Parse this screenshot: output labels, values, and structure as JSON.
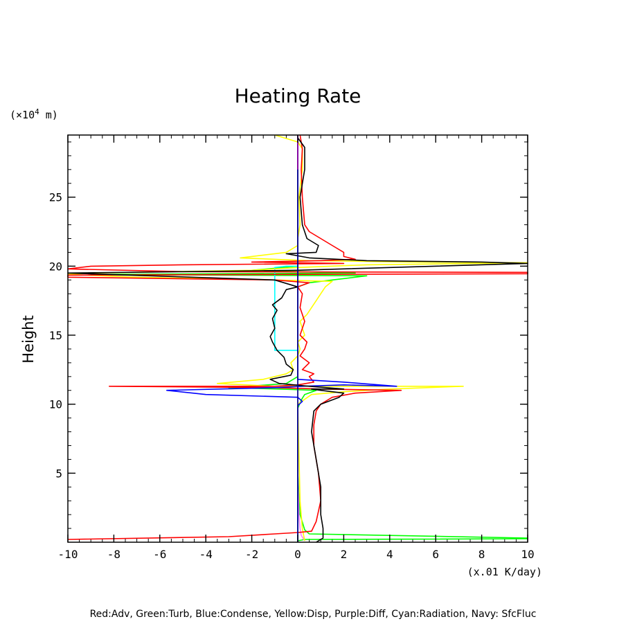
{
  "chart_data": {
    "type": "line",
    "title": "Heating Rate",
    "ylabel": "Height",
    "yunit_prefix": "(×10",
    "yunit_exp": "4",
    "yunit_suffix": " m)",
    "xunit": "(x.01 K/day)",
    "xlim": [
      -10,
      10
    ],
    "ylim": [
      0,
      29.5
    ],
    "xticks": [
      -10,
      -8,
      -6,
      -4,
      -2,
      0,
      2,
      4,
      6,
      8,
      10
    ],
    "xtick_labels": [
      "-10",
      "-8",
      "-6",
      "-4",
      "-2",
      "0",
      "2",
      "4",
      "6",
      "8",
      "10"
    ],
    "yticks": [
      5,
      10,
      15,
      20,
      25
    ],
    "ytick_labels": [
      "5",
      "10",
      "15",
      "20",
      "25"
    ],
    "legend_text": "Red:Adv, Green:Turb, Blue:Condense, Yellow:Disp, Purple:Diff, Cyan:Radiation, Navy: SfcFluc",
    "series": [
      {
        "name": "Turb",
        "color": "#00ff00",
        "points": [
          [
            0,
            0.1
          ],
          [
            0.3,
            0.2
          ],
          [
            10,
            0.25
          ],
          [
            10,
            0.3
          ],
          [
            0.5,
            0.6
          ],
          [
            0.3,
            0.9
          ],
          [
            0.1,
            2
          ],
          [
            0,
            5
          ],
          [
            0,
            9.7
          ],
          [
            0.15,
            10.3
          ],
          [
            0.3,
            10.7
          ],
          [
            0.8,
            11
          ],
          [
            -0.8,
            11.1
          ],
          [
            -3,
            11.2
          ],
          [
            -0.5,
            11.5
          ],
          [
            0,
            12
          ],
          [
            0,
            14
          ],
          [
            0,
            18.5
          ],
          [
            0.5,
            18.8
          ],
          [
            1.5,
            19
          ],
          [
            3,
            19.3
          ],
          [
            -9,
            19.4
          ],
          [
            2.5,
            19.5
          ],
          [
            0,
            19.6
          ],
          [
            -2,
            19.7
          ],
          [
            0,
            20
          ],
          [
            0,
            29.5
          ]
        ]
      },
      {
        "name": "Cyan:Radiation",
        "color": "#00ffff",
        "points": [
          [
            0,
            0
          ],
          [
            0,
            13.8
          ],
          [
            0,
            13.9
          ],
          [
            -1,
            13.9
          ],
          [
            -1,
            14.5
          ],
          [
            -1,
            16
          ],
          [
            -1,
            17.5
          ],
          [
            -1,
            19
          ],
          [
            -1,
            19.9
          ],
          [
            -0.5,
            20
          ],
          [
            0,
            20
          ],
          [
            0,
            29.5
          ]
        ]
      },
      {
        "name": "Purple:Diff",
        "color": "#ff80ff",
        "points": [
          [
            0.3,
            0.1
          ],
          [
            0.15,
            0.5
          ],
          [
            0.1,
            1
          ],
          [
            0.05,
            2
          ],
          [
            0,
            5
          ],
          [
            0,
            10
          ],
          [
            0,
            29.5
          ]
        ]
      },
      {
        "name": "Disp",
        "color": "#ffff00",
        "points": [
          [
            0.3,
            0.1
          ],
          [
            0.2,
            1
          ],
          [
            0.1,
            3
          ],
          [
            0,
            10
          ],
          [
            0.6,
            10.7
          ],
          [
            2,
            10.9
          ],
          [
            4,
            11.1
          ],
          [
            7.2,
            11.3
          ],
          [
            1.5,
            11.3
          ],
          [
            -1,
            11.3
          ],
          [
            -3.5,
            11.5
          ],
          [
            -1.5,
            11.8
          ],
          [
            -0.5,
            12.2
          ],
          [
            -0.2,
            12.5
          ],
          [
            -0.3,
            13
          ],
          [
            0,
            13.5
          ],
          [
            0.1,
            14
          ],
          [
            0,
            14.5
          ],
          [
            0.3,
            15
          ],
          [
            0.1,
            16
          ],
          [
            0.4,
            16.5
          ],
          [
            0.6,
            17
          ],
          [
            0.8,
            17.5
          ],
          [
            1,
            18
          ],
          [
            1.2,
            18.5
          ],
          [
            1.5,
            18.9
          ],
          [
            -1,
            19
          ],
          [
            -7,
            19.2
          ],
          [
            -10,
            19.4
          ],
          [
            -9,
            19.5
          ],
          [
            -2,
            19.7
          ],
          [
            0,
            19.9
          ],
          [
            3,
            20.1
          ],
          [
            10,
            20.25
          ],
          [
            5,
            20.3
          ],
          [
            0.5,
            20.4
          ],
          [
            -1,
            20.5
          ],
          [
            -2.5,
            20.6
          ],
          [
            -0.5,
            21
          ],
          [
            0,
            21.5
          ],
          [
            0,
            22
          ],
          [
            0.1,
            23
          ],
          [
            0.05,
            25
          ],
          [
            0.2,
            27
          ],
          [
            0.2,
            28.5
          ],
          [
            0,
            29
          ],
          [
            -1,
            29.5
          ]
        ]
      },
      {
        "name": "Adv",
        "color": "#ff0000",
        "points": [
          [
            -10,
            0.2
          ],
          [
            -3,
            0.4
          ],
          [
            -1,
            0.6
          ],
          [
            0,
            0.7
          ],
          [
            0.6,
            0.8
          ],
          [
            0.8,
            1.5
          ],
          [
            1,
            3
          ],
          [
            0.9,
            5
          ],
          [
            0.7,
            7
          ],
          [
            0.7,
            8.5
          ],
          [
            0.8,
            9.5
          ],
          [
            1,
            10
          ],
          [
            1.5,
            10.5
          ],
          [
            2.5,
            10.8
          ],
          [
            4.5,
            11
          ],
          [
            1,
            11.1
          ],
          [
            -1,
            11.2
          ],
          [
            -8.2,
            11.3
          ],
          [
            -1,
            11.3
          ],
          [
            0,
            11.4
          ],
          [
            0.7,
            11.6
          ],
          [
            0.5,
            12
          ],
          [
            0.7,
            12.2
          ],
          [
            0.2,
            12.5
          ],
          [
            0.5,
            13
          ],
          [
            0.1,
            13.5
          ],
          [
            0.3,
            14
          ],
          [
            0.4,
            14.5
          ],
          [
            0.1,
            15
          ],
          [
            0.3,
            16
          ],
          [
            0.1,
            17
          ],
          [
            0.2,
            18
          ],
          [
            0,
            18.5
          ],
          [
            0.5,
            18.8
          ],
          [
            -1,
            19
          ],
          [
            -10,
            19.2
          ],
          [
            -10,
            19.35
          ],
          [
            10,
            19.45
          ],
          [
            10,
            19.55
          ],
          [
            -5,
            19.6
          ],
          [
            -10,
            19.8
          ],
          [
            -9,
            20
          ],
          [
            -5,
            20.1
          ],
          [
            2,
            20.2
          ],
          [
            -2,
            20.3
          ],
          [
            1,
            20.4
          ],
          [
            2.5,
            20.5
          ],
          [
            2,
            20.7
          ],
          [
            2,
            21
          ],
          [
            1.5,
            21.5
          ],
          [
            1,
            22
          ],
          [
            0.5,
            22.5
          ],
          [
            0.3,
            23
          ],
          [
            0.2,
            25
          ],
          [
            0.15,
            27
          ],
          [
            0.2,
            28.5
          ],
          [
            0.1,
            29.5
          ]
        ]
      },
      {
        "name": "Condense",
        "color": "#0000ff",
        "points": [
          [
            0,
            0
          ],
          [
            0,
            9.9
          ],
          [
            0.2,
            10.2
          ],
          [
            0,
            10.5
          ],
          [
            -4,
            10.7
          ],
          [
            -5.7,
            11
          ],
          [
            -1,
            11.2
          ],
          [
            0.2,
            11.3
          ],
          [
            2,
            11.4
          ],
          [
            4.3,
            11.3
          ],
          [
            2,
            11.6
          ],
          [
            0,
            11.8
          ],
          [
            0,
            29.5
          ]
        ]
      },
      {
        "name": "Black",
        "color": "#000000",
        "points": [
          [
            0.8,
            0
          ],
          [
            1.1,
            0.3
          ],
          [
            1.1,
            1
          ],
          [
            1,
            2
          ],
          [
            1,
            4
          ],
          [
            0.8,
            6
          ],
          [
            0.6,
            8
          ],
          [
            0.7,
            9.5
          ],
          [
            1,
            10
          ],
          [
            1.8,
            10.5
          ],
          [
            2,
            10.8
          ],
          [
            1,
            11
          ],
          [
            0.6,
            11.1
          ],
          [
            2,
            11.1
          ],
          [
            0.5,
            11.3
          ],
          [
            -0.8,
            11.5
          ],
          [
            -1.2,
            11.8
          ],
          [
            -0.3,
            12.1
          ],
          [
            -0.2,
            12.5
          ],
          [
            -0.5,
            12.9
          ],
          [
            -0.6,
            13.4
          ],
          [
            -0.9,
            13.9
          ],
          [
            -1.1,
            14.5
          ],
          [
            -1.2,
            14.9
          ],
          [
            -1,
            15.5
          ],
          [
            -1.1,
            16.2
          ],
          [
            -0.9,
            16.8
          ],
          [
            -1.1,
            17.2
          ],
          [
            -0.7,
            17.7
          ],
          [
            -0.5,
            18.3
          ],
          [
            0,
            18.5
          ],
          [
            -1,
            19
          ],
          [
            -10,
            19.5
          ],
          [
            -5,
            19.6
          ],
          [
            0,
            19.7
          ],
          [
            10,
            20.2
          ],
          [
            8,
            20.3
          ],
          [
            3,
            20.4
          ],
          [
            0.5,
            20.6
          ],
          [
            -0.5,
            20.9
          ],
          [
            0.8,
            21
          ],
          [
            0.9,
            21.5
          ],
          [
            0.4,
            22
          ],
          [
            0.2,
            23
          ],
          [
            0.1,
            25
          ],
          [
            0.3,
            27
          ],
          [
            0.3,
            28.6
          ],
          [
            0,
            29.3
          ],
          [
            0,
            29.5
          ]
        ]
      },
      {
        "name": "Navy: SfcFluc",
        "color": "#000080",
        "points": [
          [
            0,
            0
          ],
          [
            0,
            29.5
          ]
        ]
      },
      {
        "name": "Purple",
        "color": "#a000a0",
        "points": [
          [
            0,
            27
          ],
          [
            0,
            29.5
          ]
        ]
      }
    ]
  }
}
